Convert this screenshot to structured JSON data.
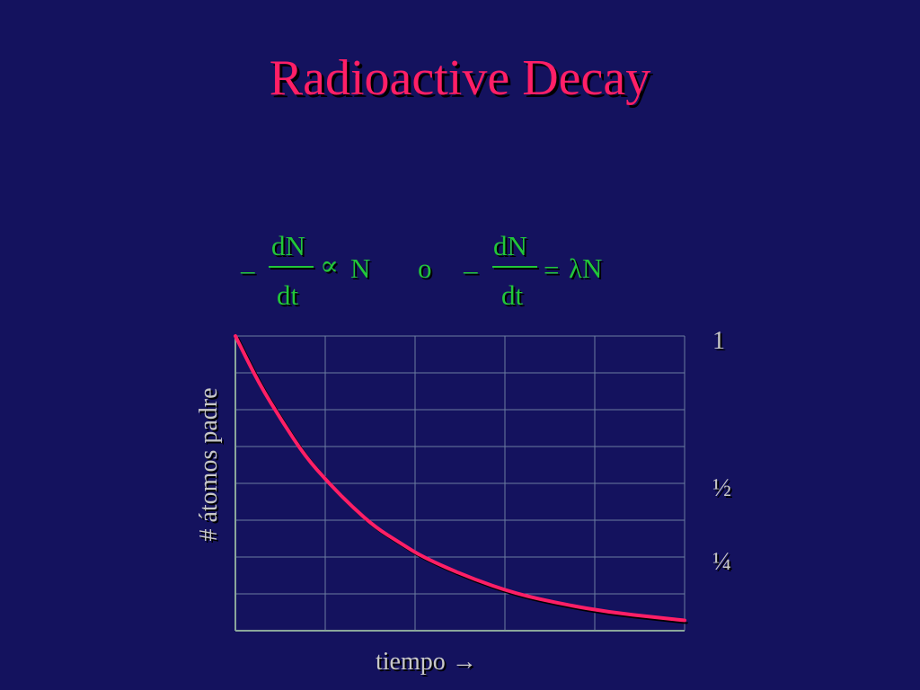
{
  "title": "Radioactive Decay",
  "equation": {
    "minus": "–",
    "numerator": "dN",
    "denominator": "dt",
    "proportional": "∝",
    "variable": "N",
    "connector": "o",
    "equals": "=",
    "lambda_n": "λN"
  },
  "colors": {
    "background": "#14125e",
    "title": "#ff1f67",
    "equation": "#22c73a",
    "curve": "#ff1f67",
    "grid": "#6b7ca0",
    "axis": "#8aa69b",
    "text": "#c8c8c8"
  },
  "chart_data": {
    "type": "line",
    "title": "",
    "xlabel": "tiempo →",
    "ylabel": "# átomos padre",
    "y_tick_labels": [
      "1",
      "½",
      "¼"
    ],
    "y_tick_values": [
      1,
      0.5,
      0.25
    ],
    "xlim": [
      0,
      4.8
    ],
    "ylim": [
      0,
      1
    ],
    "grid": true,
    "series": [
      {
        "name": "",
        "values": [
          {
            "x": 0,
            "y": 1
          },
          {
            "x": 0.25,
            "y": 0.84
          },
          {
            "x": 0.5,
            "y": 0.71
          },
          {
            "x": 0.75,
            "y": 0.59
          },
          {
            "x": 1,
            "y": 0.5
          },
          {
            "x": 1.25,
            "y": 0.42
          },
          {
            "x": 1.5,
            "y": 0.35
          },
          {
            "x": 1.75,
            "y": 0.3
          },
          {
            "x": 2,
            "y": 0.25
          },
          {
            "x": 2.5,
            "y": 0.18
          },
          {
            "x": 3,
            "y": 0.125
          },
          {
            "x": 3.5,
            "y": 0.09
          },
          {
            "x": 4,
            "y": 0.0625
          },
          {
            "x": 4.5,
            "y": 0.045
          },
          {
            "x": 4.8,
            "y": 0.035
          }
        ]
      }
    ]
  }
}
